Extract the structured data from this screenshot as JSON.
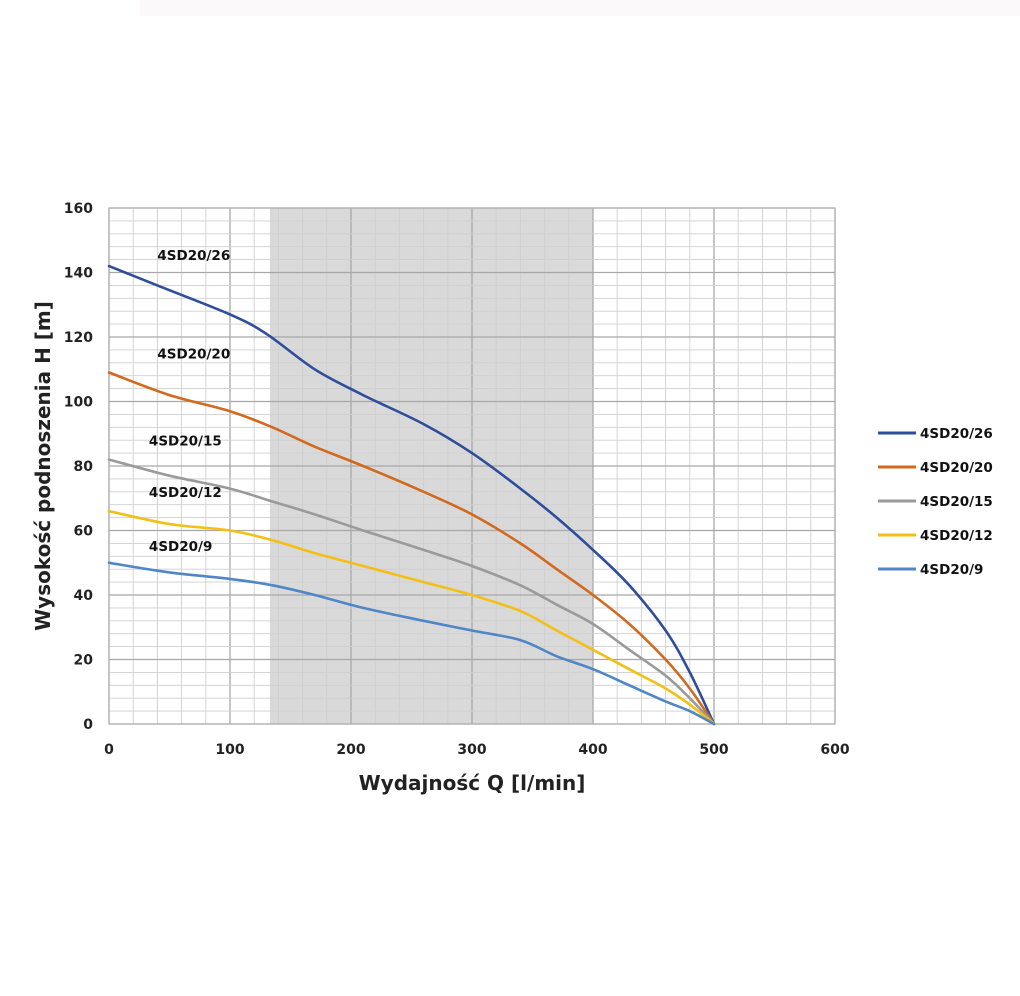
{
  "chart_data": {
    "type": "line",
    "xlabel": "Wydajność Q [l/min]",
    "ylabel": "Wysokość podnoszenia H [m]",
    "xlim": [
      0,
      600
    ],
    "ylim": [
      0,
      160
    ],
    "x_ticks": [
      "0",
      "100",
      "200",
      "300",
      "400",
      "500",
      "600"
    ],
    "y_ticks": [
      "0",
      "20",
      "40",
      "60",
      "80",
      "100",
      "120",
      "140",
      "160"
    ],
    "grid": true,
    "shaded_range": [
      133,
      400
    ],
    "legend_position": "right",
    "series": [
      {
        "name": "4SD20/26",
        "color": "#2e4d9b",
        "points": [
          [
            0,
            142
          ],
          [
            40,
            136
          ],
          [
            100,
            127
          ],
          [
            130,
            121
          ],
          [
            170,
            110
          ],
          [
            210,
            102
          ],
          [
            260,
            93
          ],
          [
            300,
            84
          ],
          [
            340,
            73
          ],
          [
            370,
            64
          ],
          [
            400,
            54
          ],
          [
            430,
            43
          ],
          [
            460,
            29
          ],
          [
            480,
            16
          ],
          [
            500,
            0
          ]
        ]
      },
      {
        "name": "4SD20/20",
        "color": "#d2691e",
        "points": [
          [
            0,
            109
          ],
          [
            50,
            102
          ],
          [
            100,
            97
          ],
          [
            135,
            92
          ],
          [
            170,
            86
          ],
          [
            210,
            80
          ],
          [
            260,
            72
          ],
          [
            300,
            65
          ],
          [
            340,
            56
          ],
          [
            370,
            48
          ],
          [
            400,
            40
          ],
          [
            430,
            31
          ],
          [
            460,
            20
          ],
          [
            480,
            11
          ],
          [
            500,
            0
          ]
        ]
      },
      {
        "name": "4SD20/15",
        "color": "#9a9a9a",
        "points": [
          [
            0,
            82
          ],
          [
            50,
            77
          ],
          [
            100,
            73
          ],
          [
            135,
            69
          ],
          [
            170,
            65
          ],
          [
            210,
            60
          ],
          [
            260,
            54
          ],
          [
            300,
            49
          ],
          [
            340,
            43
          ],
          [
            370,
            37
          ],
          [
            400,
            31
          ],
          [
            430,
            23
          ],
          [
            460,
            15
          ],
          [
            480,
            8
          ],
          [
            500,
            0
          ]
        ]
      },
      {
        "name": "4SD20/12",
        "color": "#f2c014",
        "points": [
          [
            0,
            66
          ],
          [
            50,
            62
          ],
          [
            100,
            60
          ],
          [
            135,
            57
          ],
          [
            170,
            53
          ],
          [
            210,
            49
          ],
          [
            260,
            44
          ],
          [
            300,
            40
          ],
          [
            340,
            35
          ],
          [
            370,
            29
          ],
          [
            400,
            23
          ],
          [
            430,
            17
          ],
          [
            460,
            11
          ],
          [
            480,
            6
          ],
          [
            500,
            0
          ]
        ]
      },
      {
        "name": "4SD20/9",
        "color": "#4f86c6",
        "points": [
          [
            0,
            50
          ],
          [
            50,
            47
          ],
          [
            100,
            45
          ],
          [
            135,
            43
          ],
          [
            170,
            40
          ],
          [
            210,
            36
          ],
          [
            260,
            32
          ],
          [
            300,
            29
          ],
          [
            340,
            26
          ],
          [
            370,
            21
          ],
          [
            400,
            17
          ],
          [
            430,
            12
          ],
          [
            460,
            7
          ],
          [
            480,
            4
          ],
          [
            500,
            0
          ]
        ]
      }
    ]
  }
}
